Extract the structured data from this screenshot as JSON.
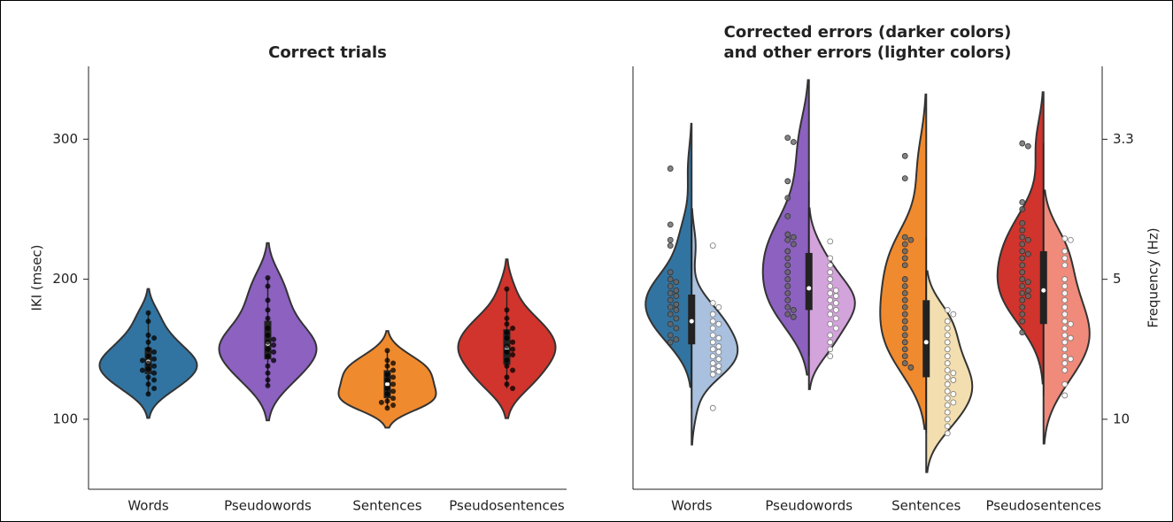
{
  "chart_data": [
    {
      "type": "violin",
      "title": "Correct trials",
      "ylabel": "IKI (msec)",
      "categories": [
        "Words",
        "Pseudowords",
        "Sentences",
        "Pseudosentences"
      ],
      "colors": [
        "#3274a1",
        "#8c61c0",
        "#f08a2e",
        "#d0342c"
      ],
      "values": [
        [
          176,
          170,
          160,
          158,
          155,
          150,
          148,
          145,
          143,
          142,
          140,
          138,
          136,
          135,
          133,
          130,
          128,
          125,
          122,
          118
        ],
        [
          201,
          195,
          185,
          178,
          172,
          165,
          160,
          157,
          155,
          153,
          150,
          148,
          145,
          142,
          138,
          133,
          128,
          124
        ],
        [
          149,
          142,
          140,
          138,
          135,
          132,
          130,
          128,
          125,
          122,
          120,
          118,
          115,
          113,
          112,
          110,
          108
        ],
        [
          193,
          178,
          172,
          168,
          165,
          162,
          158,
          155,
          152,
          150,
          148,
          146,
          142,
          138,
          135,
          130,
          125,
          122
        ]
      ],
      "ylim": [
        50,
        352
      ],
      "yticks": [
        100,
        200,
        300
      ]
    },
    {
      "type": "split_violin",
      "title": [
        "Corrected errors (darker colors)",
        "and other errors (lighter colors)"
      ],
      "y2label": "Frequency (Hz)",
      "categories": [
        "Words",
        "Pseudowords",
        "Sentences",
        "Pseudosentences"
      ],
      "series": [
        {
          "colors": [
            "#3274a1",
            "#8c61c0",
            "#f08a2e",
            "#d0342c"
          ],
          "values": [
            [
              279,
              239,
              228,
              224,
              205,
              200,
              198,
              195,
              192,
              190,
              188,
              185,
              182,
              180,
              178,
              175,
              172,
              168,
              165,
              160,
              157,
              155
            ],
            [
              301,
              298,
              270,
              258,
              245,
              232,
              230,
              228,
              225,
              220,
              215,
              210,
              205,
              200,
              195,
              190,
              185,
              180,
              178,
              175,
              173
            ],
            [
              288,
              272,
              230,
              228,
              225,
              220,
              215,
              210,
              200,
              195,
              190,
              185,
              180,
              175,
              170,
              165,
              160,
              155,
              150,
              145,
              140,
              137
            ],
            [
              297,
              295,
              255,
              250,
              240,
              235,
              230,
              228,
              225,
              220,
              218,
              215,
              210,
              205,
              200,
              198,
              195,
              192,
              190,
              188,
              185,
              180,
              175,
              170,
              162
            ]
          ]
        },
        {
          "colors": [
            "#a9c0de",
            "#d3a3dc",
            "#f3deb0",
            "#f08a7a"
          ],
          "values": [
            [
              224,
              183,
              180,
              175,
              170,
              168,
              165,
              160,
              158,
              155,
              152,
              150,
              148,
              145,
              143,
              140,
              138,
              136,
              134,
              132,
              108
            ],
            [
              227,
              215,
              210,
              205,
              200,
              195,
              192,
              190,
              188,
              185,
              183,
              180,
              178,
              175,
              172,
              168,
              165,
              160,
              155,
              150,
              145
            ],
            [
              178,
              175,
              170,
              165,
              160,
              155,
              150,
              145,
              140,
              135,
              133,
              130,
              128,
              125,
              120,
              118,
              115,
              112,
              110,
              105,
              100,
              95,
              90
            ],
            [
              229,
              228,
              220,
              215,
              210,
              200,
              195,
              190,
              185,
              180,
              175,
              170,
              168,
              165,
              160,
              158,
              155,
              150,
              145,
              143,
              140,
              135,
              125,
              117
            ]
          ]
        }
      ],
      "ylim": [
        50,
        352
      ],
      "y2_scale": "reciprocal",
      "y2lim": [
        20,
        2.84
      ],
      "y2ticks": [
        {
          "value": 3.333,
          "label": "3.3"
        },
        5,
        10
      ]
    }
  ]
}
